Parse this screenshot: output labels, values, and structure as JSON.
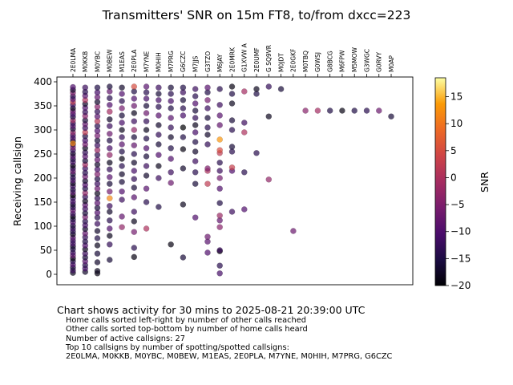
{
  "chart_data": {
    "type": "scatter",
    "title": "Transmitters' SNR on 15m FT8, to/from dxcc=223",
    "xlabel": "",
    "ylabel": "Receiving callsign",
    "ylim": [
      -20,
      405
    ],
    "yticks": [
      0,
      50,
      100,
      150,
      200,
      250,
      300,
      350,
      400
    ],
    "x_categories": [
      "2E0LMA",
      "M0KKB",
      "M0YBC",
      "M0BEW",
      "M1EAS",
      "2E0PLA",
      "M7YNE",
      "M0HIH",
      "M7PRG",
      "G6CZC",
      "M7JJS",
      "G3TZO",
      "M6JAY",
      "2E0MRK",
      "G1XVW A",
      "2E0UMF",
      "G SQ9VR",
      "M0JDT",
      "2E0GKF",
      "M0TBQ",
      "G0WSJ",
      "G8BCG",
      "M6FPW",
      "M5MOW",
      "G3WGC",
      "G0RVY",
      "M0AP"
    ],
    "colorbar": {
      "label": "SNR",
      "min": -20,
      "max": 18.5,
      "ticks": [
        15,
        10,
        5,
        0,
        -5,
        -10,
        -15,
        -20
      ],
      "colormap": "inferno"
    },
    "points": [
      [
        0,
        3,
        -18
      ],
      [
        0,
        8,
        -12
      ],
      [
        0,
        14,
        -16
      ],
      [
        0,
        20,
        -10
      ],
      [
        0,
        27,
        -14
      ],
      [
        0,
        33,
        -19
      ],
      [
        0,
        39,
        -8
      ],
      [
        0,
        45,
        -12
      ],
      [
        0,
        52,
        -15
      ],
      [
        0,
        58,
        -17
      ],
      [
        0,
        64,
        -11
      ],
      [
        0,
        70,
        -13
      ],
      [
        0,
        76,
        -9
      ],
      [
        0,
        83,
        -18
      ],
      [
        0,
        89,
        -14
      ],
      [
        0,
        95,
        -12
      ],
      [
        0,
        101,
        -16
      ],
      [
        0,
        108,
        -10
      ],
      [
        0,
        114,
        -15
      ],
      [
        0,
        120,
        -19
      ],
      [
        0,
        126,
        -12
      ],
      [
        0,
        133,
        -8
      ],
      [
        0,
        139,
        -14
      ],
      [
        0,
        145,
        -17
      ],
      [
        0,
        151,
        -11
      ],
      [
        0,
        158,
        -13
      ],
      [
        0,
        164,
        -20
      ],
      [
        0,
        170,
        -9
      ],
      [
        0,
        176,
        -15
      ],
      [
        0,
        183,
        -12
      ],
      [
        0,
        189,
        -18
      ],
      [
        0,
        195,
        -10
      ],
      [
        0,
        201,
        -14
      ],
      [
        0,
        208,
        -16
      ],
      [
        0,
        214,
        -7
      ],
      [
        0,
        220,
        -13
      ],
      [
        0,
        226,
        -19
      ],
      [
        0,
        233,
        -11
      ],
      [
        0,
        239,
        -15
      ],
      [
        0,
        245,
        -9
      ],
      [
        0,
        251,
        -17
      ],
      [
        0,
        258,
        -12
      ],
      [
        0,
        264,
        -5
      ],
      [
        0,
        270,
        -14
      ],
      [
        0,
        277,
        -18
      ],
      [
        0,
        283,
        -10
      ],
      [
        0,
        289,
        -12
      ],
      [
        0,
        295,
        -3
      ],
      [
        0,
        302,
        -16
      ],
      [
        0,
        308,
        -9
      ],
      [
        0,
        314,
        -13
      ],
      [
        0,
        320,
        -1
      ],
      [
        0,
        327,
        -15
      ],
      [
        0,
        333,
        -11
      ],
      [
        0,
        339,
        -7
      ],
      [
        0,
        345,
        -18
      ],
      [
        0,
        352,
        -12
      ],
      [
        0,
        358,
        2
      ],
      [
        0,
        364,
        -9
      ],
      [
        0,
        370,
        -14
      ],
      [
        0,
        377,
        -5
      ],
      [
        0,
        383,
        -17
      ],
      [
        0,
        389,
        -10
      ],
      [
        0,
        272,
        12
      ],
      [
        1,
        5,
        -17
      ],
      [
        1,
        12,
        -11
      ],
      [
        1,
        19,
        -14
      ],
      [
        1,
        27,
        -9
      ],
      [
        1,
        35,
        -16
      ],
      [
        1,
        43,
        -12
      ],
      [
        1,
        52,
        -18
      ],
      [
        1,
        60,
        -10
      ],
      [
        1,
        68,
        -15
      ],
      [
        1,
        77,
        -13
      ],
      [
        1,
        85,
        -8
      ],
      [
        1,
        94,
        -17
      ],
      [
        1,
        102,
        -11
      ],
      [
        1,
        110,
        -14
      ],
      [
        1,
        119,
        -6
      ],
      [
        1,
        127,
        -16
      ],
      [
        1,
        136,
        -12
      ],
      [
        1,
        144,
        -9
      ],
      [
        1,
        152,
        -18
      ],
      [
        1,
        161,
        -13
      ],
      [
        1,
        169,
        -3
      ],
      [
        1,
        178,
        -15
      ],
      [
        1,
        186,
        -10
      ],
      [
        1,
        194,
        -17
      ],
      [
        1,
        203,
        -7
      ],
      [
        1,
        211,
        -14
      ],
      [
        1,
        220,
        -12
      ],
      [
        1,
        228,
        -1
      ],
      [
        1,
        236,
        -16
      ],
      [
        1,
        245,
        -9
      ],
      [
        1,
        253,
        -13
      ],
      [
        1,
        262,
        -18
      ],
      [
        1,
        270,
        -6
      ],
      [
        1,
        278,
        -11
      ],
      [
        1,
        287,
        -15
      ],
      [
        1,
        295,
        2
      ],
      [
        1,
        304,
        -12
      ],
      [
        1,
        312,
        -8
      ],
      [
        1,
        320,
        -16
      ],
      [
        1,
        329,
        -4
      ],
      [
        1,
        337,
        -13
      ],
      [
        1,
        346,
        -10
      ],
      [
        1,
        354,
        -17
      ],
      [
        1,
        362,
        0
      ],
      [
        1,
        371,
        -9
      ],
      [
        1,
        379,
        -14
      ],
      [
        1,
        388,
        -12
      ],
      [
        2,
        2,
        -19
      ],
      [
        2,
        7,
        -18
      ],
      [
        2,
        25,
        -17
      ],
      [
        2,
        43,
        -16
      ],
      [
        2,
        60,
        -18
      ],
      [
        2,
        75,
        -15
      ],
      [
        2,
        90,
        -17
      ],
      [
        2,
        105,
        -12
      ],
      [
        2,
        118,
        -14
      ],
      [
        2,
        128,
        -10
      ],
      [
        2,
        138,
        -16
      ],
      [
        2,
        148,
        -9
      ],
      [
        2,
        158,
        -13
      ],
      [
        2,
        168,
        -18
      ],
      [
        2,
        178,
        -7
      ],
      [
        2,
        188,
        -12
      ],
      [
        2,
        198,
        -15
      ],
      [
        2,
        208,
        -5
      ],
      [
        2,
        218,
        -11
      ],
      [
        2,
        228,
        -17
      ],
      [
        2,
        238,
        -8
      ],
      [
        2,
        248,
        -14
      ],
      [
        2,
        258,
        -2
      ],
      [
        2,
        268,
        -12
      ],
      [
        2,
        278,
        -16
      ],
      [
        2,
        288,
        -6
      ],
      [
        2,
        298,
        -10
      ],
      [
        2,
        308,
        -14
      ],
      [
        2,
        318,
        1
      ],
      [
        2,
        328,
        -9
      ],
      [
        2,
        338,
        -13
      ],
      [
        2,
        348,
        -4
      ],
      [
        2,
        358,
        -17
      ],
      [
        2,
        368,
        -8
      ],
      [
        2,
        378,
        -11
      ],
      [
        2,
        388,
        -15
      ],
      [
        3,
        30,
        -16
      ],
      [
        3,
        62,
        -13
      ],
      [
        3,
        80,
        -18
      ],
      [
        3,
        95,
        -10
      ],
      [
        3,
        112,
        -14
      ],
      [
        3,
        130,
        -17
      ],
      [
        3,
        142,
        -12
      ],
      [
        3,
        158,
        12
      ],
      [
        3,
        172,
        -6
      ],
      [
        3,
        188,
        -16
      ],
      [
        3,
        202,
        -9
      ],
      [
        3,
        218,
        -13
      ],
      [
        3,
        232,
        -18
      ],
      [
        3,
        248,
        -3
      ],
      [
        3,
        262,
        -11
      ],
      [
        3,
        278,
        -15
      ],
      [
        3,
        292,
        -7
      ],
      [
        3,
        308,
        -12
      ],
      [
        3,
        322,
        -17
      ],
      [
        3,
        338,
        -1
      ],
      [
        3,
        352,
        -10
      ],
      [
        3,
        366,
        -14
      ],
      [
        3,
        380,
        -8
      ],
      [
        3,
        390,
        -16
      ],
      [
        4,
        98,
        -3
      ],
      [
        4,
        120,
        -8
      ],
      [
        4,
        155,
        -12
      ],
      [
        4,
        172,
        -10
      ],
      [
        4,
        192,
        -16
      ],
      [
        4,
        208,
        -17
      ],
      [
        4,
        225,
        -14
      ],
      [
        4,
        240,
        -19
      ],
      [
        4,
        255,
        -15
      ],
      [
        4,
        270,
        -9
      ],
      [
        4,
        285,
        -13
      ],
      [
        4,
        300,
        -18
      ],
      [
        4,
        315,
        -11
      ],
      [
        4,
        330,
        -16
      ],
      [
        4,
        345,
        -6
      ],
      [
        4,
        360,
        -14
      ],
      [
        4,
        375,
        -10
      ],
      [
        4,
        388,
        -17
      ],
      [
        5,
        36,
        -19
      ],
      [
        5,
        55,
        -14
      ],
      [
        5,
        88,
        -6
      ],
      [
        5,
        110,
        -18
      ],
      [
        5,
        130,
        -12
      ],
      [
        5,
        160,
        -9
      ],
      [
        5,
        180,
        -16
      ],
      [
        5,
        198,
        -13
      ],
      [
        5,
        215,
        -11
      ],
      [
        5,
        232,
        -17
      ],
      [
        5,
        250,
        -14
      ],
      [
        5,
        268,
        -8
      ],
      [
        5,
        285,
        -16
      ],
      [
        5,
        300,
        -3
      ],
      [
        5,
        318,
        -12
      ],
      [
        5,
        335,
        -18
      ],
      [
        5,
        350,
        -7
      ],
      [
        5,
        365,
        -10
      ],
      [
        5,
        380,
        -15
      ],
      [
        5,
        390,
        5
      ],
      [
        6,
        95,
        0
      ],
      [
        6,
        150,
        -14
      ],
      [
        6,
        178,
        -9
      ],
      [
        6,
        205,
        -17
      ],
      [
        6,
        225,
        -12
      ],
      [
        6,
        245,
        -16
      ],
      [
        6,
        262,
        -10
      ],
      [
        6,
        282,
        -15
      ],
      [
        6,
        300,
        -18
      ],
      [
        6,
        318,
        -13
      ],
      [
        6,
        335,
        -7
      ],
      [
        6,
        350,
        -16
      ],
      [
        6,
        365,
        -11
      ],
      [
        6,
        378,
        -14
      ],
      [
        6,
        390,
        -9
      ],
      [
        7,
        140,
        -15
      ],
      [
        7,
        200,
        -12
      ],
      [
        7,
        225,
        -18
      ],
      [
        7,
        248,
        -10
      ],
      [
        7,
        270,
        -16
      ],
      [
        7,
        290,
        -13
      ],
      [
        7,
        310,
        -17
      ],
      [
        7,
        330,
        -9
      ],
      [
        7,
        348,
        -14
      ],
      [
        7,
        362,
        -11
      ],
      [
        7,
        375,
        -16
      ],
      [
        7,
        388,
        -12
      ],
      [
        8,
        62,
        -19
      ],
      [
        8,
        190,
        -7
      ],
      [
        8,
        212,
        -12
      ],
      [
        8,
        240,
        -10
      ],
      [
        8,
        262,
        -15
      ],
      [
        8,
        285,
        -17
      ],
      [
        8,
        305,
        -13
      ],
      [
        8,
        325,
        -9
      ],
      [
        8,
        345,
        -15
      ],
      [
        8,
        360,
        -11
      ],
      [
        8,
        375,
        -14
      ],
      [
        8,
        388,
        -16
      ],
      [
        9,
        35,
        -16
      ],
      [
        9,
        145,
        -18
      ],
      [
        9,
        220,
        -17
      ],
      [
        9,
        260,
        -19
      ],
      [
        9,
        285,
        -15
      ],
      [
        9,
        305,
        -20
      ],
      [
        9,
        330,
        -11
      ],
      [
        9,
        345,
        -14
      ],
      [
        9,
        362,
        -16
      ],
      [
        9,
        378,
        -12
      ],
      [
        9,
        388,
        -15
      ],
      [
        10,
        118,
        -10
      ],
      [
        10,
        188,
        -16
      ],
      [
        10,
        212,
        -14
      ],
      [
        10,
        235,
        -12
      ],
      [
        10,
        255,
        -17
      ],
      [
        10,
        275,
        -15
      ],
      [
        10,
        295,
        -11
      ],
      [
        10,
        310,
        -18
      ],
      [
        10,
        325,
        -13
      ],
      [
        10,
        340,
        -16
      ],
      [
        10,
        355,
        -10
      ],
      [
        10,
        370,
        -14
      ],
      [
        10,
        385,
        -12
      ],
      [
        11,
        45,
        -10
      ],
      [
        11,
        68,
        -9
      ],
      [
        11,
        78,
        -7
      ],
      [
        11,
        188,
        2
      ],
      [
        11,
        215,
        0
      ],
      [
        11,
        220,
        -5
      ],
      [
        11,
        270,
        -13
      ],
      [
        11,
        290,
        -17
      ],
      [
        11,
        305,
        -14
      ],
      [
        11,
        325,
        -16
      ],
      [
        11,
        345,
        -12
      ],
      [
        11,
        362,
        -6
      ],
      [
        11,
        378,
        -15
      ],
      [
        11,
        388,
        -9
      ],
      [
        12,
        2,
        -11
      ],
      [
        12,
        18,
        -14
      ],
      [
        12,
        48,
        -20
      ],
      [
        12,
        50,
        -12
      ],
      [
        12,
        98,
        -4
      ],
      [
        12,
        112,
        -8
      ],
      [
        12,
        122,
        -2
      ],
      [
        12,
        148,
        -15
      ],
      [
        12,
        178,
        -10
      ],
      [
        12,
        200,
        -6
      ],
      [
        12,
        215,
        -12
      ],
      [
        12,
        232,
        -14
      ],
      [
        12,
        252,
        2
      ],
      [
        12,
        258,
        5
      ],
      [
        12,
        280,
        13
      ],
      [
        12,
        310,
        -8
      ],
      [
        12,
        330,
        -9
      ],
      [
        12,
        352,
        -12
      ],
      [
        12,
        385,
        -14
      ],
      [
        13,
        130,
        -12
      ],
      [
        13,
        215,
        -10
      ],
      [
        13,
        222,
        3
      ],
      [
        13,
        255,
        -14
      ],
      [
        13,
        265,
        -16
      ],
      [
        13,
        300,
        -14
      ],
      [
        13,
        320,
        -16
      ],
      [
        13,
        355,
        -18
      ],
      [
        13,
        375,
        -15
      ],
      [
        13,
        390,
        -19
      ],
      [
        14,
        135,
        -10
      ],
      [
        14,
        212,
        -14
      ],
      [
        14,
        295,
        0
      ],
      [
        14,
        315,
        -12
      ],
      [
        14,
        380,
        -1
      ],
      [
        15,
        252,
        -14
      ],
      [
        15,
        375,
        -15
      ],
      [
        15,
        385,
        -18
      ],
      [
        16,
        197,
        -3
      ],
      [
        16,
        328,
        -18
      ],
      [
        16,
        390,
        -13
      ],
      [
        17,
        385,
        -16
      ],
      [
        18,
        90,
        -7
      ],
      [
        19,
        340,
        -4
      ],
      [
        20,
        340,
        -1
      ],
      [
        21,
        340,
        -15
      ],
      [
        22,
        340,
        -19
      ],
      [
        23,
        340,
        -15
      ],
      [
        24,
        340,
        -14
      ],
      [
        25,
        340,
        -7
      ],
      [
        26,
        328,
        -16
      ]
    ]
  },
  "caption": "Chart shows activity for 30 mins to 2025-08-21 20:39:00 UTC",
  "notes": [
    "Home calls sorted left-right by number of other calls reached",
    "Other calls sorted top-bottom by number of home calls heard",
    "Number of active callsigns: 27",
    "Top 10 callsigns by number of spotting/spotted callsigns:",
    "2E0LMA, M0KKB, M0YBC, M0BEW, M1EAS, 2E0PLA, M7YNE, M0HIH, M7PRG, G6CZC"
  ]
}
